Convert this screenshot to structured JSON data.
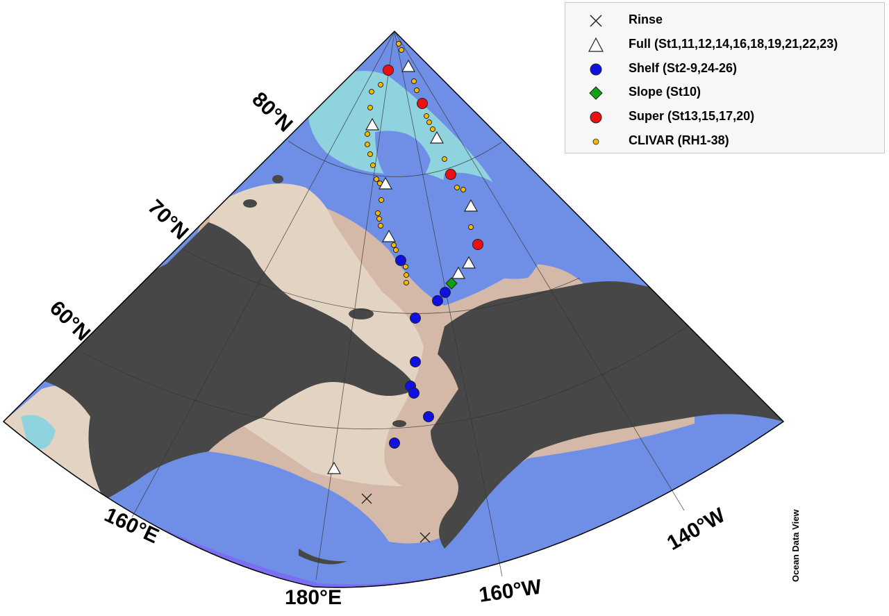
{
  "legend": {
    "items": [
      {
        "label": "Rinse",
        "symbol": "x-mark",
        "color": "#222222"
      },
      {
        "label": "Full (St1,11,12,14,16,18,19,21,22,23)",
        "symbol": "triangle",
        "color": "#ffffff"
      },
      {
        "label": "Shelf (St2-9,24-26)",
        "symbol": "circle",
        "color": "#1010e0"
      },
      {
        "label": "Slope (St10)",
        "symbol": "diamond",
        "color": "#10a010"
      },
      {
        "label": "Super (St13,15,17,20)",
        "symbol": "circle",
        "color": "#ee1010"
      },
      {
        "label": "CLIVAR (RH1-38)",
        "symbol": "small-circle",
        "color": "#f5b800"
      }
    ]
  },
  "latitude_labels": [
    "80°N",
    "70°N",
    "60°N"
  ],
  "longitude_labels": [
    "160°E",
    "180°E",
    "160°W",
    "140°W"
  ],
  "watermark": "Ocean Data View",
  "colors": {
    "land": "#474747",
    "shelf_shallow": "#e2d3c3",
    "shelf": "#d4b9a8",
    "deep": "#6f8fe6",
    "mid": "#8fb8ea",
    "shallow_blue": "#8fd3de",
    "abyss": "#7a6ff0"
  }
}
